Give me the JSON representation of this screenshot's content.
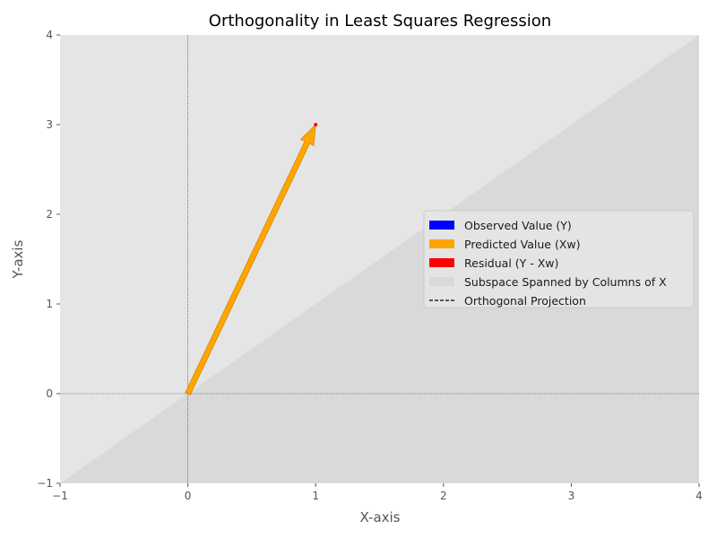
{
  "chart_data": {
    "type": "line",
    "title": "Orthogonality in Least Squares Regression",
    "xlabel": "X-axis",
    "ylabel": "Y-axis",
    "xlim": [
      -1,
      4
    ],
    "ylim": [
      -1,
      4
    ],
    "x_ticks": [
      -1,
      0,
      1,
      2,
      3,
      4
    ],
    "y_ticks": [
      -1,
      0,
      1,
      2,
      3,
      4
    ],
    "x_tick_labels": [
      "−1",
      "0",
      "1",
      "2",
      "3",
      "4"
    ],
    "y_tick_labels": [
      "−1",
      "0",
      "1",
      "2",
      "3",
      "4"
    ],
    "grid": false,
    "legend_position": "center-right",
    "colors": {
      "plot_background": "#e5e5e5",
      "subspace": "#d9d9d9",
      "observed": "#0000ff",
      "predicted": "#ffa500",
      "residual": "#ff0000",
      "projection": "#000000",
      "axes_text": "#555555"
    },
    "series": [
      {
        "name": "Observed Value (Y)",
        "kind": "arrow",
        "from": [
          0,
          0
        ],
        "to": [
          1,
          3
        ],
        "color": "#0000ff"
      },
      {
        "name": "Predicted Value (Xw)",
        "kind": "arrow",
        "from": [
          0,
          0
        ],
        "to": [
          1,
          3
        ],
        "color": "#ffa500"
      },
      {
        "name": "Residual (Y - Xw)",
        "kind": "arrow",
        "from": [
          1,
          3
        ],
        "to": [
          1,
          3
        ],
        "color": "#ff0000"
      },
      {
        "name": "Subspace Spanned by Columns of X",
        "kind": "fill",
        "boundary": [
          [
            -1,
            -1
          ],
          [
            4,
            4
          ]
        ],
        "color": "#d9d9d9"
      },
      {
        "name": "Orthogonal Projection",
        "kind": "dashed-line",
        "from": [
          1,
          3
        ],
        "to": [
          1,
          3
        ],
        "color": "#000000"
      }
    ],
    "reference_lines": {
      "x": 0,
      "y": 0
    }
  }
}
